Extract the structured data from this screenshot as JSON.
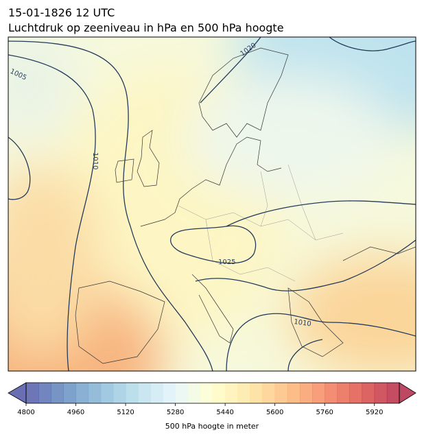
{
  "header": {
    "date": "15-01-1826 12 UTC",
    "title": "Luchtdruk op zeeniveau in hPa en 500 hPa hoogte"
  },
  "map": {
    "contour_labels": [
      "1005",
      "1020",
      "1010",
      "1025",
      "1010"
    ]
  },
  "colorbar": {
    "label": "500 hPa hoogte in meter",
    "lim": [
      4800,
      6000
    ],
    "step": 40,
    "ticks": [
      4800,
      4960,
      5120,
      5280,
      5440,
      5600,
      5760,
      5920
    ]
  }
}
